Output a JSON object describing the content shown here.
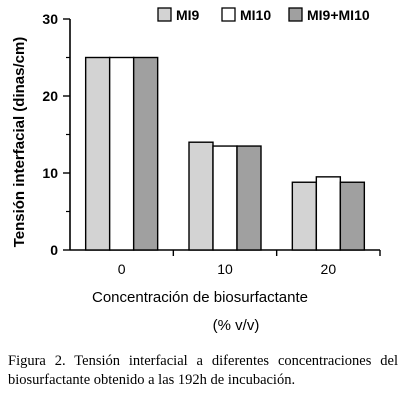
{
  "chart_data": {
    "type": "bar",
    "categories": [
      "0",
      "10",
      "20"
    ],
    "series": [
      {
        "name": "MI9",
        "values": [
          25,
          14,
          8.8
        ],
        "color": "#d3d3d3"
      },
      {
        "name": "MI10",
        "values": [
          25,
          13.5,
          9.5
        ],
        "color": "#ffffff"
      },
      {
        "name": "MI9+MI10",
        "values": [
          25,
          13.5,
          8.8
        ],
        "color": "#a0a0a0"
      }
    ],
    "xlabel": "Concentración de biosurfactante",
    "xlabel_units": "(% v/v)",
    "ylabel": "Tensión interfacial (dinas/cm)",
    "ylim": [
      0,
      30
    ],
    "yticks": [
      0,
      10,
      20,
      30
    ],
    "grid": false,
    "legend_position": "top"
  },
  "caption": {
    "text": "Figura 2. Tensión interfacial a diferentes concentraciones del biosurfactante obtenido a las 192h de incubación."
  }
}
